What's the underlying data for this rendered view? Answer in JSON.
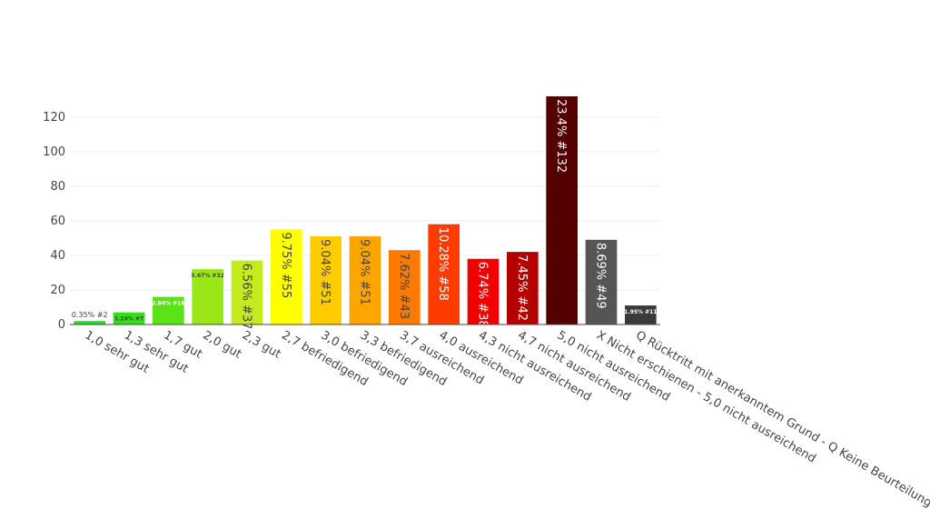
{
  "chart_data": {
    "type": "bar",
    "title": "",
    "xlabel": "",
    "ylabel": "",
    "ylim": [
      0,
      132
    ],
    "yticks": [
      0,
      20,
      40,
      60,
      80,
      100,
      120
    ],
    "grid": true,
    "legend": "none",
    "categories": [
      "1,0 sehr gut",
      "1,3 sehr gut",
      "1,7 gut",
      "2,0 gut",
      "2,3 gut",
      "2,7 befriedigend",
      "3,0 befriedigend",
      "3,3 befriedigend",
      "3,7 ausreichend",
      "4,0 ausreichend",
      "4,3 nicht ausreichend",
      "4,7 nicht ausreichend",
      "5,0 nicht ausreichend",
      "X Nicht erschienen - 5,0 nicht ausreichend",
      "Q Rücktritt mit anerkanntem Grund - Q Keine Beurteilung"
    ],
    "values": [
      2,
      7,
      16,
      32,
      37,
      55,
      51,
      51,
      43,
      58,
      38,
      42,
      132,
      49,
      11
    ],
    "labels": [
      "0.35% #2",
      "1.24% #7",
      "2.84% #16",
      "5.67% #32",
      "6.56% #37",
      "9.75% #55",
      "9.04% #51",
      "9.04% #51",
      "7.62% #43",
      "10.28% #58",
      "6.74% #38",
      "7.45% #42",
      "23.4% #132",
      "8.69% #49",
      "1.95% #11"
    ],
    "colors": [
      "#22e022",
      "#33e018",
      "#5ae316",
      "#9ae618",
      "#c4ec1c",
      "#ffff00",
      "#ffcc00",
      "#ffa500",
      "#ff7a00",
      "#ff3c00",
      "#f00000",
      "#b40000",
      "#550000",
      "#555555",
      "#3a3a3a"
    ],
    "label_colors": [
      "#444444",
      "#444444",
      "#ffffff",
      "#444444",
      "#444444",
      "#444444",
      "#444444",
      "#444444",
      "#444444",
      "#ffffff",
      "#ffffff",
      "#ffffff",
      "#ffffff",
      "#ffffff",
      "#ffffff"
    ]
  }
}
